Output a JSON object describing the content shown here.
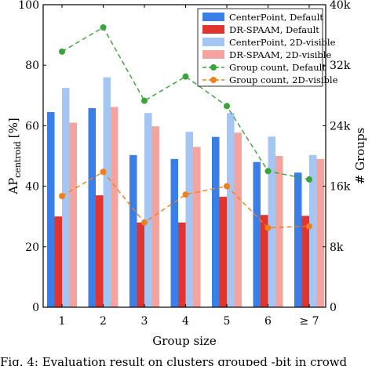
{
  "chart_data": {
    "type": "bar",
    "xlabel": "Group size",
    "ylabel_left": "AP",
    "ylabel_left_sub": "centroid",
    "ylabel_left_unit": "[%]",
    "ylabel_right": "# Groups",
    "categories": [
      "1",
      "2",
      "3",
      "4",
      "5",
      "6",
      "≥ 7"
    ],
    "ylim_left": [
      0,
      100
    ],
    "yticks_left": [
      "0",
      "20",
      "40",
      "60",
      "80",
      "100"
    ],
    "ylim_right": [
      0,
      40000
    ],
    "yticks_right": [
      "0",
      "8k",
      "16k",
      "24k",
      "32k",
      "40k"
    ],
    "legend_position": "top-right",
    "bar_series": [
      {
        "name": "CenterPoint,  Default",
        "color": "#3a7ee8",
        "values": [
          64.5,
          65.8,
          50.3,
          49.0,
          56.3,
          48.0,
          44.5
        ]
      },
      {
        "name": "DR-SPAAM, Default",
        "color": "#e0342f",
        "values": [
          30.0,
          37.0,
          28.0,
          28.0,
          36.5,
          30.5,
          30.2
        ]
      },
      {
        "name": "CenterPoint,  2D-visible",
        "color": "#a5c5f3",
        "values": [
          72.5,
          76.0,
          64.2,
          58.0,
          64.2,
          56.4,
          50.3
        ]
      },
      {
        "name": "DR-SPAAM, 2D-visible",
        "color": "#f3a49f",
        "values": [
          61.0,
          66.2,
          59.8,
          53.0,
          57.7,
          50.0,
          49.0
        ]
      }
    ],
    "line_series": [
      {
        "name": "Group count, Default",
        "color": "#3aa33a",
        "values": [
          33800,
          37000,
          27300,
          30500,
          26600,
          18000,
          16900
        ]
      },
      {
        "name": "Group count, 2D-visible",
        "color": "#f07f1e",
        "values": [
          14700,
          17900,
          11200,
          14900,
          16000,
          10500,
          10700
        ]
      }
    ]
  },
  "caption": "Fig. 4: Evaluation result on clusters grouped -bit in crowd"
}
